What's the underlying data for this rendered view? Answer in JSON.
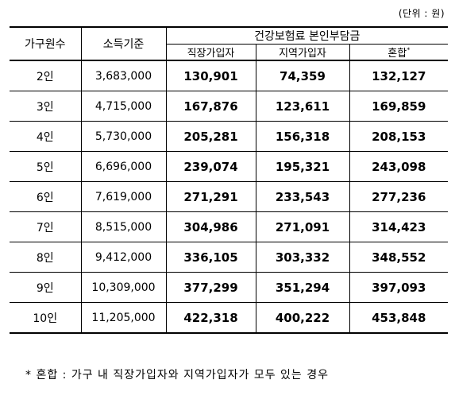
{
  "unit_label": "(단위 : 원)",
  "table": {
    "header": {
      "household": "가구원수",
      "income": "소득기준",
      "group": "건강보험료 본인부담금",
      "employee": "직장가입자",
      "regional": "지역가입자",
      "mixed": "혼합",
      "mixed_mark": "*"
    },
    "rows": [
      {
        "household": "2인",
        "income": "3,683,000",
        "employee": "130,901",
        "regional": "74,359",
        "mixed": "132,127"
      },
      {
        "household": "3인",
        "income": "4,715,000",
        "employee": "167,876",
        "regional": "123,611",
        "mixed": "169,859"
      },
      {
        "household": "4인",
        "income": "5,730,000",
        "employee": "205,281",
        "regional": "156,318",
        "mixed": "208,153"
      },
      {
        "household": "5인",
        "income": "6,696,000",
        "employee": "239,074",
        "regional": "195,321",
        "mixed": "243,098"
      },
      {
        "household": "6인",
        "income": "7,619,000",
        "employee": "271,291",
        "regional": "233,543",
        "mixed": "277,236"
      },
      {
        "household": "7인",
        "income": "8,515,000",
        "employee": "304,986",
        "regional": "271,091",
        "mixed": "314,423"
      },
      {
        "household": "8인",
        "income": "9,412,000",
        "employee": "336,105",
        "regional": "303,332",
        "mixed": "348,552"
      },
      {
        "household": "9인",
        "income": "10,309,000",
        "employee": "377,299",
        "regional": "351,294",
        "mixed": "397,093"
      },
      {
        "household": "10인",
        "income": "11,205,000",
        "employee": "422,318",
        "regional": "400,222",
        "mixed": "453,848"
      }
    ]
  },
  "footnote": "* 혼합 : 가구 내 직장가입자와 지역가입자가 모두 있는 경우"
}
